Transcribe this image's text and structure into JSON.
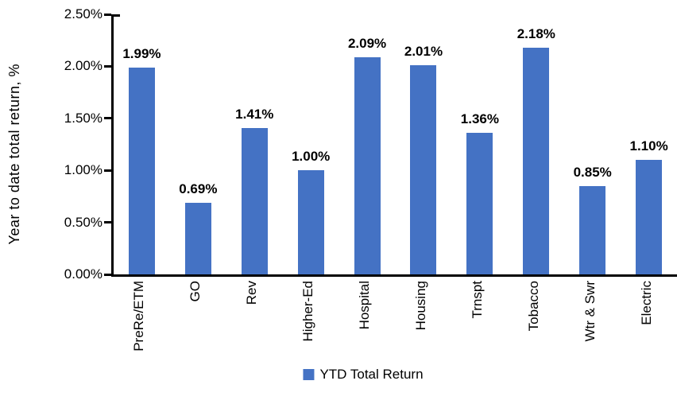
{
  "chart_data": {
    "type": "bar",
    "title": "",
    "ylabel": "Year to date total return, %",
    "xlabel": "",
    "categories": [
      "PreRe/ETM",
      "GO",
      "Rev",
      "Higher-Ed",
      "Hospital",
      "Housing",
      "Trnspt",
      "Tobacco",
      "Wtr & Swr",
      "Electric"
    ],
    "values": [
      1.99,
      0.69,
      1.41,
      1.0,
      2.09,
      2.01,
      1.36,
      2.18,
      0.85,
      1.1
    ],
    "data_labels": [
      "1.99%",
      "0.69%",
      "1.41%",
      "1.00%",
      "2.09%",
      "2.01%",
      "1.36%",
      "2.18%",
      "0.85%",
      "1.10%"
    ],
    "ylim": [
      0,
      2.5
    ],
    "ytick_values": [
      0,
      0.5,
      1.0,
      1.5,
      2.0,
      2.5
    ],
    "ytick_labels": [
      "0.00%",
      "0.50%",
      "1.00%",
      "1.50%",
      "2.00%",
      "2.50%"
    ],
    "grid": false,
    "bar_color": "#4472C4",
    "axis_color": "#000000",
    "label_color": "#000000",
    "legend": {
      "position": "bottom",
      "entries": [
        {
          "label": "YTD Total Return",
          "color": "#4472C4"
        }
      ]
    }
  }
}
